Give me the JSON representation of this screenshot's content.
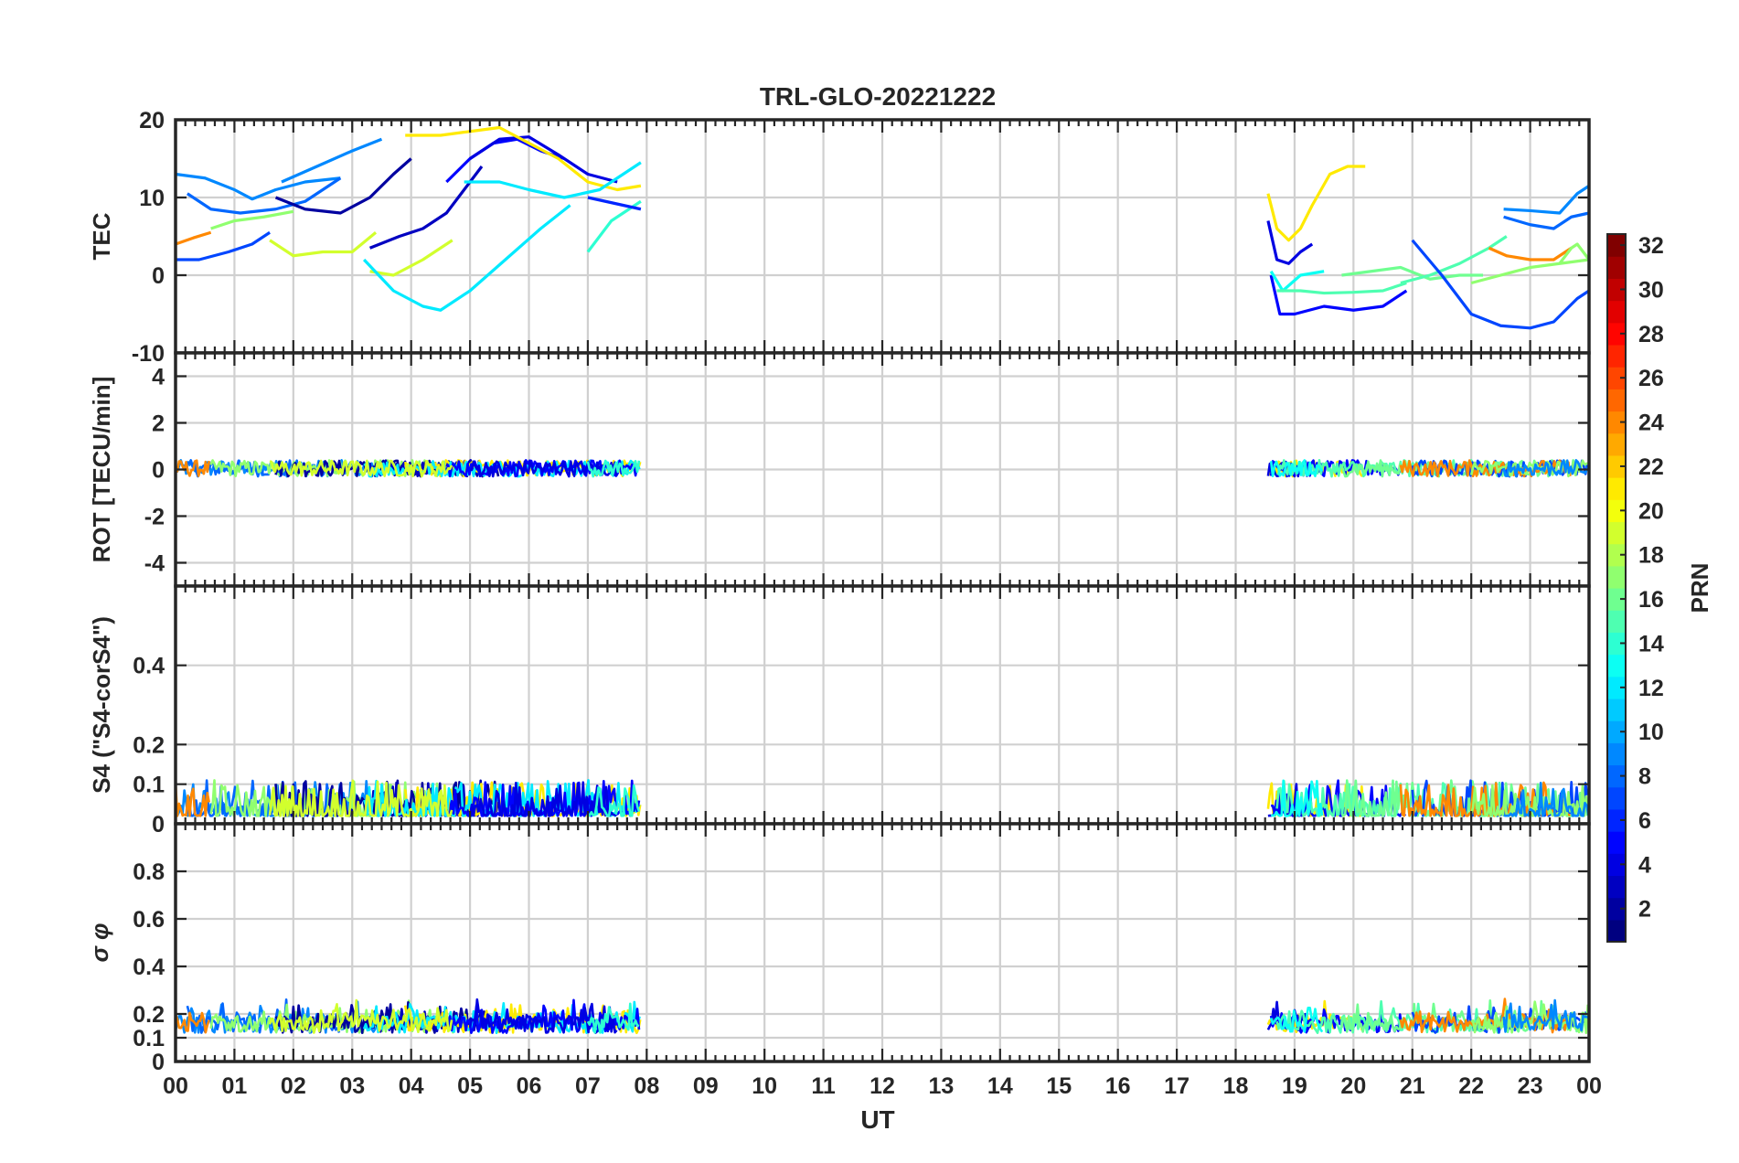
{
  "chart_data": {
    "type": "line",
    "title": "TRL-GLO-20221222",
    "xlabel": "UT",
    "x_tick_labels": [
      "00",
      "01",
      "02",
      "03",
      "04",
      "05",
      "06",
      "07",
      "08",
      "09",
      "10",
      "11",
      "12",
      "13",
      "14",
      "15",
      "16",
      "17",
      "18",
      "19",
      "20",
      "21",
      "22",
      "23",
      "00"
    ],
    "xlim": [
      0,
      24
    ],
    "grid": true,
    "colorbar": {
      "label": "PRN",
      "colormap": "jet",
      "range": [
        1,
        32
      ],
      "tick_labels": [
        "2",
        "4",
        "6",
        "8",
        "10",
        "12",
        "14",
        "16",
        "18",
        "20",
        "22",
        "24",
        "26",
        "28",
        "30",
        "32"
      ]
    },
    "panels": [
      {
        "ylabel": "TEC",
        "ylim": [
          -10,
          20
        ],
        "y_tick_labels": [
          "20",
          "10",
          "0",
          "-10"
        ],
        "series": [
          {
            "prn": 9,
            "x": [
              0,
              0.5,
              1,
              1.3,
              1.7,
              2.2,
              2.8
            ],
            "y": [
              13,
              12.5,
              11,
              9.8,
              11,
              12,
              12.5
            ]
          },
          {
            "prn": 9,
            "x": [
              1.8,
              2.4,
              3,
              3.5
            ],
            "y": [
              12,
              14,
              16,
              17.5
            ]
          },
          {
            "prn": 8,
            "x": [
              0.2,
              0.6,
              1.1,
              1.7,
              2.2,
              2.8
            ],
            "y": [
              10.5,
              8.5,
              8,
              8.5,
              9.5,
              12.5
            ]
          },
          {
            "prn": 7,
            "x": [
              0,
              0.4,
              0.9,
              1.3,
              1.6
            ],
            "y": [
              2,
              2,
              3,
              4,
              5.5
            ]
          },
          {
            "prn": 24,
            "x": [
              0,
              0.3,
              0.6
            ],
            "y": [
              4,
              4.8,
              5.5
            ]
          },
          {
            "prn": 17,
            "x": [
              0.6,
              1,
              1.5,
              2
            ],
            "y": [
              6,
              7,
              7.5,
              8.2
            ]
          },
          {
            "prn": 2,
            "x": [
              1.7,
              2.2,
              2.8,
              3.3,
              3.7,
              4
            ],
            "y": [
              10,
              8.5,
              8,
              10,
              13,
              15
            ]
          },
          {
            "prn": 19,
            "x": [
              1.6,
              2,
              2.5,
              3,
              3.4
            ],
            "y": [
              4.5,
              2.5,
              3,
              3,
              5.5
            ]
          },
          {
            "prn": 19,
            "x": [
              3.3,
              3.7,
              4.2,
              4.7
            ],
            "y": [
              0.5,
              0,
              2,
              4.5
            ]
          },
          {
            "prn": 3,
            "x": [
              3.3,
              3.8,
              4.2,
              4.6,
              4.9,
              5.2
            ],
            "y": [
              3.5,
              5,
              6,
              8,
              11,
              14
            ]
          },
          {
            "prn": 5,
            "x": [
              4.6,
              5,
              5.4,
              5.8,
              6.2,
              6.6
            ],
            "y": [
              12,
              15,
              17,
              17.5,
              16,
              15
            ]
          },
          {
            "prn": 4,
            "x": [
              5,
              5.5,
              6,
              6.5,
              7,
              7.5
            ],
            "y": [
              15,
              17.5,
              17.8,
              15.5,
              13,
              12
            ]
          },
          {
            "prn": 21,
            "x": [
              3.9,
              4.5,
              5,
              5.5,
              6,
              6.5,
              7,
              7.5,
              7.9
            ],
            "y": [
              18,
              18,
              18.5,
              19,
              17,
              15,
              12,
              11,
              11.5
            ]
          },
          {
            "prn": 12,
            "x": [
              3.2,
              3.7,
              4.2,
              4.5,
              5,
              5.6,
              6.2,
              6.7
            ],
            "y": [
              2,
              -2,
              -4,
              -4.5,
              -2,
              2,
              6,
              9
            ]
          },
          {
            "prn": 12,
            "x": [
              4.9,
              5.5,
              6,
              6.6,
              7.2,
              7.9
            ],
            "y": [
              12,
              12,
              11,
              10,
              11,
              14.5
            ]
          },
          {
            "prn": 14,
            "x": [
              7,
              7.4,
              7.9
            ],
            "y": [
              3,
              7,
              9.5
            ]
          },
          {
            "prn": 6,
            "x": [
              7,
              7.3,
              7.6,
              7.9
            ],
            "y": [
              10,
              9.5,
              9,
              8.5
            ]
          },
          {
            "prn": 21,
            "x": [
              18.55,
              18.7,
              18.9,
              19.1,
              19.3,
              19.6,
              19.9,
              20.2
            ],
            "y": [
              10.5,
              6,
              4.5,
              6,
              9,
              13,
              14,
              14
            ]
          },
          {
            "prn": 4,
            "x": [
              18.55,
              18.7,
              18.9,
              19.1,
              19.3
            ],
            "y": [
              7,
              2,
              1.5,
              3,
              4
            ]
          },
          {
            "prn": 5,
            "x": [
              18.6,
              18.75,
              19,
              19.5,
              20,
              20.5,
              20.9
            ],
            "y": [
              0,
              -5,
              -5,
              -4,
              -4.5,
              -4,
              -2
            ]
          },
          {
            "prn": 13,
            "x": [
              18.6,
              18.8,
              19.1,
              19.5
            ],
            "y": [
              0.5,
              -2,
              0,
              0.5
            ]
          },
          {
            "prn": 15,
            "x": [
              18.7,
              19.1,
              19.5,
              20,
              20.5,
              20.9
            ],
            "y": [
              -2,
              -2,
              -2.3,
              -2.2,
              -2,
              -1
            ]
          },
          {
            "prn": 16,
            "x": [
              19.8,
              20.3,
              20.8,
              21.3,
              21.8,
              22.2
            ],
            "y": [
              0,
              0.5,
              1,
              -0.5,
              0,
              0
            ]
          },
          {
            "prn": 15,
            "x": [
              20.8,
              21.3,
              21.8,
              22.3,
              22.6
            ],
            "y": [
              -1,
              0,
              1.5,
              3.5,
              5
            ]
          },
          {
            "prn": 7,
            "x": [
              21,
              21.5,
              22,
              22.5,
              23,
              23.4,
              23.8,
              24
            ],
            "y": [
              4.5,
              0,
              -5,
              -6.5,
              -6.8,
              -6,
              -3,
              -2
            ]
          },
          {
            "prn": 17,
            "x": [
              22,
              22.5,
              23,
              23.5,
              24
            ],
            "y": [
              -1,
              0,
              1,
              1.5,
              2
            ]
          },
          {
            "prn": 24,
            "x": [
              22.3,
              22.6,
              23,
              23.4,
              23.7
            ],
            "y": [
              3.5,
              2.5,
              2,
              2,
              3.5
            ]
          },
          {
            "prn": 17,
            "x": [
              23.5,
              23.7,
              23.8,
              24
            ],
            "y": [
              1.5,
              3.5,
              4,
              2
            ]
          },
          {
            "prn": 9,
            "x": [
              22.55,
              23,
              23.5,
              23.8,
              24
            ],
            "y": [
              8.5,
              8.3,
              8,
              10.5,
              11.5
            ]
          },
          {
            "prn": 8,
            "x": [
              22.55,
              23,
              23.4,
              23.7,
              24
            ],
            "y": [
              7.5,
              6.5,
              6,
              7.5,
              8
            ]
          }
        ]
      },
      {
        "ylabel": "ROT [TECU/min]",
        "ylim": [
          -5,
          5
        ],
        "y_tick_labels": [
          "4",
          "2",
          "0",
          "-2",
          "-4"
        ]
      },
      {
        "ylabel": "S4 (\"S4-corS4\")",
        "ylim": [
          0,
          0.6
        ],
        "y_tick_labels": [
          "0.4",
          "0.2",
          "0.1",
          "0"
        ]
      },
      {
        "ylabel": "σ φ",
        "ylim": [
          0,
          1
        ],
        "y_tick_labels": [
          "0.8",
          "0.6",
          "0.4",
          "0.2",
          "0.1",
          "0"
        ]
      }
    ]
  }
}
